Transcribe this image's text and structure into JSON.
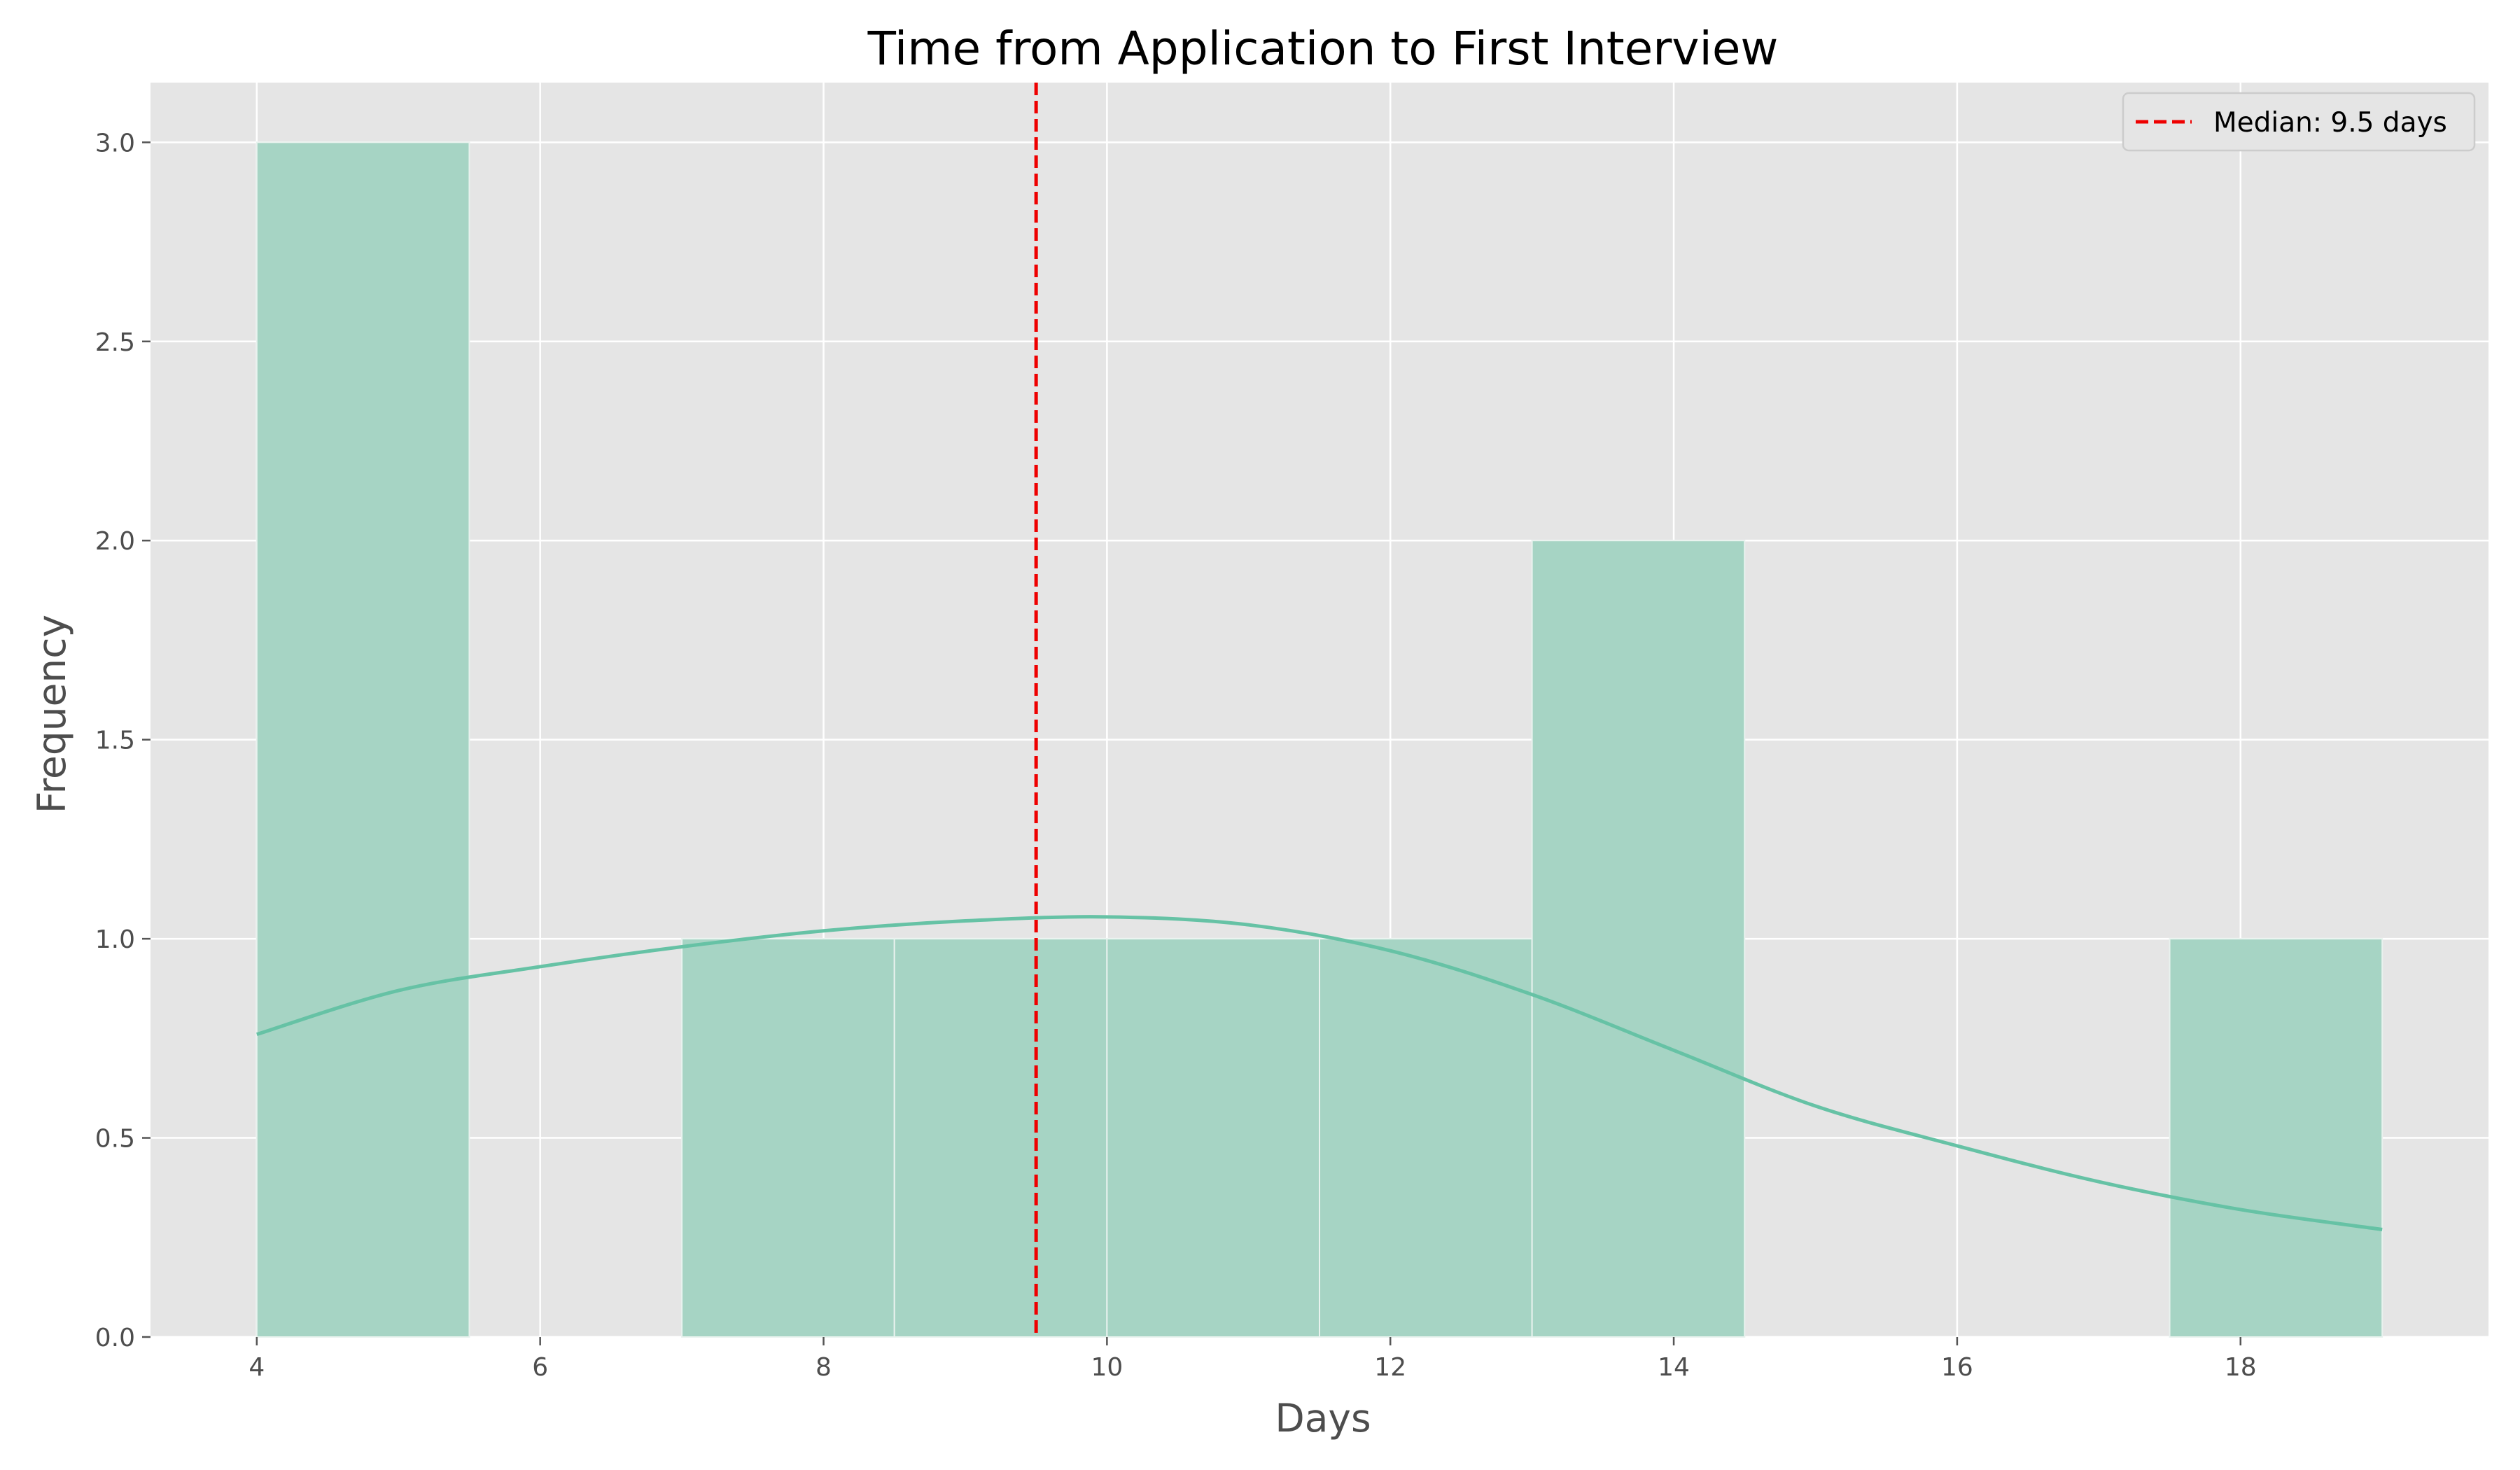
{
  "chart_data": {
    "type": "bar",
    "title": "Time from Application to First Interview",
    "xlabel": "Days",
    "ylabel": "Frequency",
    "xlim": [
      3.25,
      19.75
    ],
    "ylim": [
      0,
      3.15
    ],
    "x_ticks": [
      4,
      6,
      8,
      10,
      12,
      14,
      16,
      18
    ],
    "x_tick_labels": [
      "4",
      "6",
      "8",
      "10",
      "12",
      "14",
      "16",
      "18"
    ],
    "y_ticks": [
      0,
      0.5,
      1.0,
      1.5,
      2.0,
      2.5,
      3.0
    ],
    "y_tick_labels": [
      "0.0",
      "0.5",
      "1.0",
      "1.5",
      "2.0",
      "2.5",
      "3.0"
    ],
    "grid": true,
    "bins": [
      {
        "start": 4.0,
        "end": 5.5,
        "count": 3
      },
      {
        "start": 5.5,
        "end": 7.0,
        "count": 0
      },
      {
        "start": 7.0,
        "end": 8.5,
        "count": 1
      },
      {
        "start": 8.5,
        "end": 10.0,
        "count": 1
      },
      {
        "start": 10.0,
        "end": 11.5,
        "count": 1
      },
      {
        "start": 11.5,
        "end": 13.0,
        "count": 1
      },
      {
        "start": 13.0,
        "end": 14.5,
        "count": 2
      },
      {
        "start": 14.5,
        "end": 16.0,
        "count": 0
      },
      {
        "start": 16.0,
        "end": 17.5,
        "count": 0
      },
      {
        "start": 17.5,
        "end": 19.0,
        "count": 1
      }
    ],
    "kde": {
      "x": [
        4,
        5,
        6,
        7,
        8,
        9,
        10,
        11,
        12,
        13,
        14,
        15,
        16,
        17,
        18,
        19
      ],
      "y": [
        0.76,
        0.87,
        0.93,
        0.98,
        1.02,
        1.045,
        1.055,
        1.035,
        0.97,
        0.86,
        0.72,
        0.58,
        0.48,
        0.39,
        0.32,
        0.27
      ]
    },
    "median": 9.5,
    "legend": {
      "position": "upper right",
      "entries": [
        {
          "label": "Median: 9.5 days",
          "style": "dashed",
          "color": "#ee0000"
        }
      ]
    },
    "colors": {
      "bar_fill": "#a6d4c4",
      "bar_edge": "#e8f2ee",
      "kde_line": "#66c2a5",
      "median_line": "#ee0000",
      "plot_background": "#e5e5e5",
      "grid": "#ffffff"
    }
  }
}
